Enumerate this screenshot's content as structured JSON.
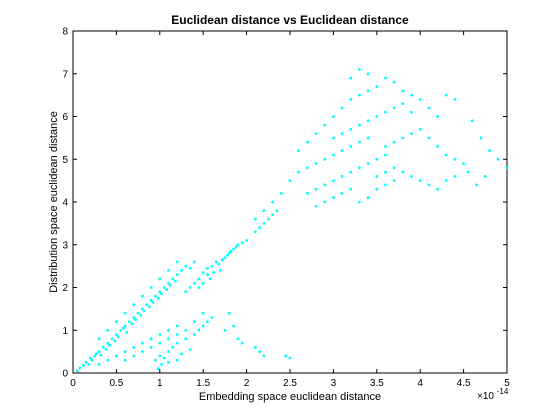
{
  "chart_data": {
    "type": "scatter",
    "title": "Euclidean distance vs Euclidean distance",
    "xlabel": "Embedding space euclidean distance",
    "ylabel": "Distribution space euclidean distance",
    "x_multiplier_label": {
      "base": "×10",
      "exponent": "-14"
    },
    "xlim": [
      0,
      5
    ],
    "ylim": [
      0,
      8
    ],
    "x_ticks": [
      "0",
      "0.5",
      "1",
      "1.5",
      "2",
      "2.5",
      "3",
      "3.5",
      "4",
      "4.5",
      "5"
    ],
    "y_ticks": [
      "0",
      "1",
      "2",
      "3",
      "4",
      "5",
      "6",
      "7",
      "8"
    ],
    "grid": false,
    "marker_color": "#00ffff",
    "series": [
      {
        "points": [
          [
            0.05,
            0.05
          ],
          [
            0.08,
            0.12
          ],
          [
            0.12,
            0.18
          ],
          [
            0.15,
            0.25
          ],
          [
            0.18,
            0.2
          ],
          [
            0.2,
            0.35
          ],
          [
            0.22,
            0.3
          ],
          [
            0.25,
            0.4
          ],
          [
            0.27,
            0.45
          ],
          [
            0.3,
            0.5
          ],
          [
            0.32,
            0.42
          ],
          [
            0.35,
            0.6
          ],
          [
            0.38,
            0.55
          ],
          [
            0.4,
            0.7
          ],
          [
            0.42,
            0.65
          ],
          [
            0.45,
            0.8
          ],
          [
            0.48,
            0.75
          ],
          [
            0.5,
            0.9
          ],
          [
            0.52,
            0.85
          ],
          [
            0.55,
            1.0
          ],
          [
            0.58,
            1.05
          ],
          [
            0.6,
            1.1
          ],
          [
            0.62,
            0.95
          ],
          [
            0.65,
            1.2
          ],
          [
            0.68,
            1.15
          ],
          [
            0.7,
            1.3
          ],
          [
            0.72,
            1.25
          ],
          [
            0.75,
            1.4
          ],
          [
            0.78,
            1.35
          ],
          [
            0.8,
            1.5
          ],
          [
            0.82,
            1.45
          ],
          [
            0.85,
            1.6
          ],
          [
            0.88,
            1.55
          ],
          [
            0.9,
            1.7
          ],
          [
            0.92,
            1.65
          ],
          [
            0.95,
            1.8
          ],
          [
            0.98,
            1.75
          ],
          [
            1.0,
            1.9
          ],
          [
            1.02,
            1.85
          ],
          [
            1.05,
            2.0
          ],
          [
            1.08,
            1.95
          ],
          [
            1.1,
            2.1
          ],
          [
            1.12,
            2.05
          ],
          [
            1.15,
            2.2
          ],
          [
            1.18,
            2.15
          ],
          [
            1.2,
            2.3
          ],
          [
            1.25,
            2.4
          ],
          [
            1.3,
            2.5
          ],
          [
            1.35,
            2.45
          ],
          [
            1.4,
            2.6
          ],
          [
            0.3,
            0.2
          ],
          [
            0.4,
            0.3
          ],
          [
            0.5,
            0.4
          ],
          [
            0.6,
            0.5
          ],
          [
            0.7,
            0.6
          ],
          [
            0.8,
            0.7
          ],
          [
            0.9,
            0.8
          ],
          [
            1.0,
            0.9
          ],
          [
            1.1,
            1.0
          ],
          [
            1.2,
            1.1
          ],
          [
            0.3,
            0.8
          ],
          [
            0.4,
            1.0
          ],
          [
            0.5,
            1.2
          ],
          [
            0.6,
            1.4
          ],
          [
            0.7,
            1.6
          ],
          [
            0.8,
            1.8
          ],
          [
            0.9,
            2.0
          ],
          [
            1.0,
            2.2
          ],
          [
            1.1,
            2.4
          ],
          [
            1.2,
            2.6
          ],
          [
            0.6,
            0.3
          ],
          [
            0.7,
            0.4
          ],
          [
            0.8,
            0.5
          ],
          [
            0.9,
            0.6
          ],
          [
            1.0,
            0.7
          ],
          [
            1.1,
            0.8
          ],
          [
            1.2,
            0.9
          ],
          [
            1.3,
            1.0
          ],
          [
            1.4,
            1.2
          ],
          [
            1.5,
            1.4
          ],
          [
            1.0,
            0.4
          ],
          [
            1.1,
            0.5
          ],
          [
            1.15,
            0.6
          ],
          [
            1.2,
            0.7
          ],
          [
            1.3,
            0.8
          ],
          [
            1.4,
            0.9
          ],
          [
            1.45,
            1.0
          ],
          [
            1.5,
            1.1
          ],
          [
            1.6,
            1.3
          ],
          [
            1.55,
            1.2
          ],
          [
            0.95,
            0.3
          ],
          [
            1.05,
            0.35
          ],
          [
            1.25,
            0.45
          ],
          [
            1.35,
            0.55
          ],
          [
            1.02,
            0.2
          ],
          [
            0.98,
            0.1
          ],
          [
            1.1,
            0.25
          ],
          [
            1.2,
            0.3
          ],
          [
            1.55,
            2.3
          ],
          [
            1.6,
            2.5
          ],
          [
            1.65,
            2.6
          ],
          [
            1.7,
            2.4
          ],
          [
            1.75,
            2.7
          ],
          [
            1.8,
            2.8
          ],
          [
            1.85,
            2.9
          ],
          [
            1.9,
            3.0
          ],
          [
            1.95,
            3.05
          ],
          [
            2.0,
            3.1
          ],
          [
            1.45,
            2.0
          ],
          [
            1.5,
            2.1
          ],
          [
            1.58,
            2.2
          ],
          [
            1.62,
            2.35
          ],
          [
            1.68,
            2.55
          ],
          [
            1.72,
            2.65
          ],
          [
            1.78,
            2.75
          ],
          [
            1.82,
            2.85
          ],
          [
            1.88,
            2.95
          ],
          [
            1.3,
            1.9
          ],
          [
            1.35,
            2.0
          ],
          [
            1.4,
            2.1
          ],
          [
            1.45,
            2.2
          ],
          [
            1.5,
            2.35
          ],
          [
            1.55,
            2.45
          ],
          [
            1.9,
            0.8
          ],
          [
            1.95,
            0.7
          ],
          [
            1.85,
            1.1
          ],
          [
            1.8,
            1.4
          ],
          [
            2.1,
            0.6
          ],
          [
            2.2,
            0.4
          ],
          [
            2.15,
            0.5
          ],
          [
            2.45,
            0.4
          ],
          [
            2.5,
            0.35
          ],
          [
            1.75,
            1.0
          ],
          [
            2.1,
            3.3
          ],
          [
            2.15,
            3.4
          ],
          [
            2.2,
            3.5
          ],
          [
            2.25,
            3.6
          ],
          [
            2.3,
            3.7
          ],
          [
            2.35,
            3.8
          ],
          [
            2.1,
            3.6
          ],
          [
            2.2,
            3.8
          ],
          [
            2.3,
            4.0
          ],
          [
            2.4,
            4.2
          ],
          [
            2.5,
            4.5
          ],
          [
            2.6,
            4.7
          ],
          [
            2.7,
            4.8
          ],
          [
            2.8,
            4.9
          ],
          [
            2.9,
            5.0
          ],
          [
            3.0,
            5.1
          ],
          [
            3.1,
            5.2
          ],
          [
            3.2,
            5.3
          ],
          [
            3.3,
            5.4
          ],
          [
            3.4,
            5.5
          ],
          [
            2.6,
            5.2
          ],
          [
            2.7,
            5.4
          ],
          [
            2.8,
            5.6
          ],
          [
            2.9,
            5.8
          ],
          [
            3.0,
            6.0
          ],
          [
            3.1,
            6.2
          ],
          [
            3.2,
            6.4
          ],
          [
            3.3,
            6.5
          ],
          [
            3.4,
            6.6
          ],
          [
            3.5,
            6.7
          ],
          [
            2.7,
            4.2
          ],
          [
            2.8,
            4.3
          ],
          [
            2.9,
            4.4
          ],
          [
            3.0,
            4.5
          ],
          [
            3.1,
            4.6
          ],
          [
            3.2,
            4.7
          ],
          [
            3.3,
            4.8
          ],
          [
            3.4,
            4.9
          ],
          [
            3.5,
            5.0
          ],
          [
            3.6,
            5.1
          ],
          [
            2.8,
            3.9
          ],
          [
            2.9,
            4.0
          ],
          [
            3.0,
            4.1
          ],
          [
            3.1,
            4.2
          ],
          [
            3.2,
            4.3
          ],
          [
            3.3,
            4.0
          ],
          [
            3.4,
            4.1
          ],
          [
            3.5,
            4.3
          ],
          [
            3.6,
            4.4
          ],
          [
            3.7,
            4.5
          ],
          [
            3.0,
            5.5
          ],
          [
            3.1,
            5.6
          ],
          [
            3.2,
            5.7
          ],
          [
            3.3,
            5.8
          ],
          [
            3.4,
            5.9
          ],
          [
            3.5,
            6.0
          ],
          [
            3.6,
            6.1
          ],
          [
            3.7,
            6.2
          ],
          [
            3.8,
            6.3
          ],
          [
            3.9,
            6.1
          ],
          [
            3.3,
            7.1
          ],
          [
            3.4,
            7.0
          ],
          [
            3.2,
            6.9
          ],
          [
            3.6,
            6.9
          ],
          [
            3.7,
            6.8
          ],
          [
            3.8,
            6.6
          ],
          [
            3.9,
            6.5
          ],
          [
            4.0,
            6.4
          ],
          [
            4.1,
            6.2
          ],
          [
            4.2,
            6.0
          ],
          [
            3.6,
            5.3
          ],
          [
            3.7,
            5.4
          ],
          [
            3.8,
            5.5
          ],
          [
            3.9,
            5.6
          ],
          [
            4.0,
            5.7
          ],
          [
            4.1,
            5.5
          ],
          [
            4.2,
            5.3
          ],
          [
            4.3,
            5.1
          ],
          [
            4.4,
            5.0
          ],
          [
            4.5,
            4.9
          ],
          [
            3.5,
            4.6
          ],
          [
            3.6,
            4.7
          ],
          [
            3.7,
            4.8
          ],
          [
            3.8,
            4.7
          ],
          [
            3.9,
            4.6
          ],
          [
            4.0,
            4.5
          ],
          [
            4.1,
            4.4
          ],
          [
            4.2,
            4.3
          ],
          [
            4.3,
            4.5
          ],
          [
            4.4,
            4.6
          ],
          [
            4.6,
            5.9
          ],
          [
            4.7,
            5.5
          ],
          [
            4.8,
            5.2
          ],
          [
            4.9,
            5.0
          ],
          [
            5.0,
            4.8
          ],
          [
            4.55,
            4.7
          ],
          [
            4.65,
            4.4
          ],
          [
            4.75,
            4.6
          ],
          [
            4.3,
            6.5
          ],
          [
            4.4,
            6.4
          ]
        ]
      }
    ]
  }
}
